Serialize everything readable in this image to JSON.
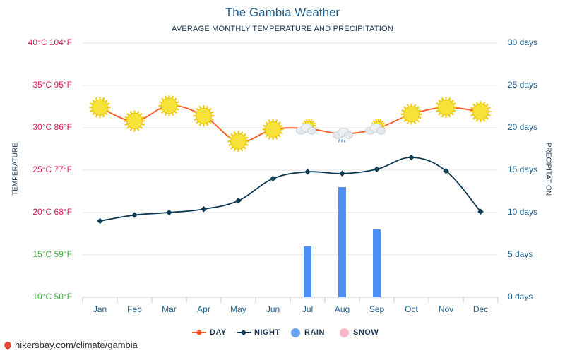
{
  "title": "The Gambia Weather",
  "subtitle": "AVERAGE MONTHLY TEMPERATURE AND PRECIPITATION",
  "axes": {
    "left_title": "TEMPERATURE",
    "right_title": "PRECIPITATION",
    "left_ticks": [
      {
        "label": "40°C 104°F",
        "value": 40,
        "color": "#e0205a"
      },
      {
        "label": "35°C 95°F",
        "value": 35,
        "color": "#e0205a"
      },
      {
        "label": "30°C 86°F",
        "value": 30,
        "color": "#e0205a"
      },
      {
        "label": "25°C 77°F",
        "value": 25,
        "color": "#e0205a"
      },
      {
        "label": "20°C 68°F",
        "value": 20,
        "color": "#e0205a"
      },
      {
        "label": "15°C 59°F",
        "value": 15,
        "color": "#3caa3c"
      },
      {
        "label": "10°C 50°F",
        "value": 10,
        "color": "#3caa3c"
      }
    ],
    "right_ticks": [
      {
        "label": "30 days",
        "value": 30
      },
      {
        "label": "25 days",
        "value": 25
      },
      {
        "label": "20 days",
        "value": 20
      },
      {
        "label": "15 days",
        "value": 15
      },
      {
        "label": "10 days",
        "value": 10
      },
      {
        "label": "5 days",
        "value": 5
      },
      {
        "label": "0 days",
        "value": 0
      }
    ]
  },
  "legend": {
    "day": "DAY",
    "night": "NIGHT",
    "rain": "RAIN",
    "snow": "SNOW"
  },
  "footer": "hikersbay.com/climate/gambia",
  "colors": {
    "day": "#ff5722",
    "night": "#0d3a52",
    "rain": "#4d8ff5",
    "snow": "#ffb6c9",
    "grid": "#e6e6e6"
  },
  "chart_data": {
    "type": "line",
    "categories": [
      "Jan",
      "Feb",
      "Mar",
      "Apr",
      "May",
      "Jun",
      "Jul",
      "Aug",
      "Sep",
      "Oct",
      "Nov",
      "Dec"
    ],
    "temp_range": [
      10,
      40
    ],
    "precip_range": [
      0,
      30
    ],
    "series": [
      {
        "name": "DAY",
        "axis": "temperature",
        "values": [
          32.4,
          30.8,
          32.6,
          31.4,
          28.4,
          29.8,
          29.9,
          29.3,
          29.9,
          31.6,
          32.4,
          31.9
        ]
      },
      {
        "name": "NIGHT",
        "axis": "temperature",
        "values": [
          19.0,
          19.7,
          20.0,
          20.4,
          21.4,
          24.0,
          24.8,
          24.6,
          25.1,
          26.5,
          24.9,
          20.1
        ]
      },
      {
        "name": "RAIN",
        "axis": "precipitation",
        "type": "bar",
        "values": [
          0,
          0,
          0,
          0,
          0,
          0,
          6,
          13,
          8,
          0,
          0,
          0
        ]
      },
      {
        "name": "SNOW",
        "axis": "precipitation",
        "type": "bar",
        "values": [
          0,
          0,
          0,
          0,
          0,
          0,
          0,
          0,
          0,
          0,
          0,
          0
        ]
      }
    ],
    "weather_icons": [
      "sun",
      "sun",
      "sun",
      "sun",
      "sun",
      "sun",
      "partly-cloudy",
      "rain-cloud",
      "partly-cloudy",
      "sun",
      "sun",
      "sun"
    ]
  }
}
